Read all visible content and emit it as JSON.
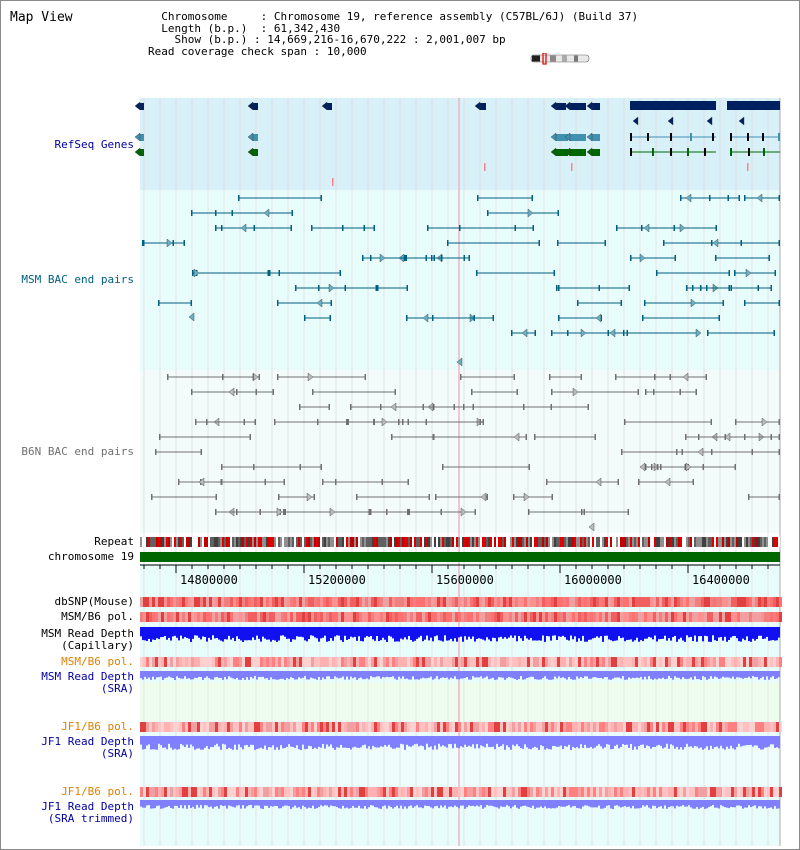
{
  "app": {
    "title": "Map View"
  },
  "header": {
    "chromosome_key": "Chromosome",
    "chromosome_value": "Chromosome 19, reference assembly (C57BL/6J) (Build 37)",
    "length_key": "Length (b.p.)",
    "length_value": "61,342,430",
    "show_key": "Show (b.p.)",
    "show_value": "14,669,216-16,670,222 : 2,001,007 bp",
    "coverage_key": "Read coverage check span",
    "coverage_value": "10,000"
  },
  "tracks": {
    "refseq": {
      "label": "RefSeq Genes",
      "color": "#000099"
    },
    "msm_bac": {
      "label": "MSM BAC end pairs",
      "color": "#006080"
    },
    "b6n_bac": {
      "label": "B6N BAC end pairs",
      "color": "#707070"
    },
    "repeat": {
      "label": "Repeat"
    },
    "chromosome": {
      "label": "chromosome 19"
    },
    "dbsnp": {
      "label": "dbSNP(Mouse)"
    },
    "msm_b6_pol": {
      "label": "MSM/B6 pol."
    },
    "msm_read_depth_cap": {
      "line1": "MSM Read Depth",
      "line2": "(Capillary)"
    },
    "msm_b6_pol_sra": {
      "label": "MSM/B6 pol.",
      "color": "#e08000"
    },
    "msm_read_depth_sra": {
      "line1": "MSM Read Depth",
      "line2": "(SRA)",
      "color": "#0000a0"
    },
    "jf1_b6_pol": {
      "label": "JF1/B6 pol.",
      "color": "#e08000"
    },
    "jf1_read_depth_sra": {
      "line1": "JF1 Read Depth",
      "line2": "(SRA)",
      "color": "#0000a0"
    },
    "jf1_b6_pol_trimmed": {
      "label": "JF1/B6 pol.",
      "color": "#e08000"
    },
    "jf1_read_depth_trimmed": {
      "line1": "JF1 Read Depth",
      "line2": "(SRA trimmed)",
      "color": "#0000a0"
    }
  },
  "axis": {
    "ticks": [
      "14800000",
      "15200000",
      "15600000",
      "16000000",
      "16400000"
    ]
  },
  "colors": {
    "refseq_bg": "#d8f0f8",
    "lane_bg": "#e8fcfc",
    "chrom_bar": "#006600",
    "gene_dark": "#002060",
    "gene_teal": "#4090b0",
    "gene_green": "#006600",
    "depth_blue": "#1010f0",
    "depth_light": "#8080ff",
    "pol_red": "#f04040"
  }
}
